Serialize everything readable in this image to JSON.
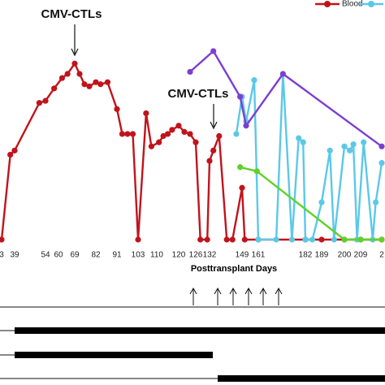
{
  "chart_data": {
    "type": "line",
    "xlabel": "Posttransplant Days",
    "annotations": [
      "CMV-CTLs",
      "CMV-CTLs"
    ],
    "xlim": [
      33,
      216
    ],
    "xticks": [
      {
        "value": 33,
        "label": "3"
      },
      39,
      54,
      60,
      69,
      82,
      91,
      103,
      110,
      120,
      126,
      132,
      149,
      161,
      182,
      189,
      200,
      209,
      {
        "value": 216,
        "label": "2"
      }
    ],
    "ylim": [
      0,
      100
    ],
    "series": [
      {
        "name": "Blood",
        "color": "#c0141c",
        "x": [
          33,
          37,
          39,
          51,
          54,
          58,
          62,
          65,
          69,
          72,
          75,
          78,
          82,
          84,
          87,
          91,
          94,
          97,
          100,
          103,
          106,
          108,
          111,
          113,
          115,
          117,
          120,
          122,
          124,
          126,
          128,
          131,
          132,
          134,
          137,
          141,
          144,
          149,
          151,
          161,
          182,
          189,
          200,
          209,
          216
        ],
        "values": [
          0,
          41,
          43,
          66,
          67,
          73,
          78,
          80,
          85,
          80,
          75,
          74,
          76,
          75,
          76,
          63,
          51,
          51,
          51,
          0,
          61,
          45,
          47,
          50,
          51,
          53,
          55,
          52,
          51,
          47,
          0,
          0,
          38,
          43,
          50,
          0,
          0,
          25,
          0,
          0,
          0,
          0,
          0,
          0,
          0
        ]
      },
      {
        "color": "#5bc8e8",
        "x": [
          146,
          149,
          152,
          158,
          161,
          169,
          172,
          176,
          179,
          181,
          182,
          185,
          189,
          193,
          195,
          200,
          203,
          205,
          207,
          210,
          213,
          214,
          216
        ],
        "values": [
          51,
          69,
          57,
          77,
          0,
          0,
          80,
          0,
          49,
          47,
          0,
          0,
          18,
          43,
          0,
          45,
          43,
          46,
          0,
          47,
          0,
          18,
          37
        ]
      },
      {
        "color": "#7b3fd0",
        "x": [
          124,
          134,
          148,
          152,
          172,
          216
        ],
        "values": [
          81,
          91,
          69,
          55,
          80,
          45
        ]
      },
      {
        "color": "#5fd12a",
        "x": [
          148,
          160,
          200,
          209,
          216
        ],
        "values": [
          35,
          33,
          0,
          0,
          0
        ]
      }
    ]
  }
}
